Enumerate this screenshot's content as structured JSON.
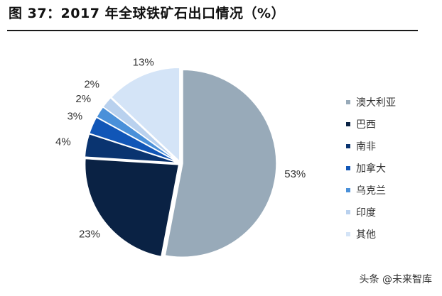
{
  "title": "图 37：2017 年全球铁矿石出口情况（%）",
  "watermark": "头条 @未来智库",
  "chart_data": {
    "type": "pie",
    "title": "图 37：2017 年全球铁矿石出口情况（%）",
    "categories": [
      "澳大利亚",
      "巴西",
      "南非",
      "加拿大",
      "乌克兰",
      "印度",
      "其他"
    ],
    "values": [
      53,
      23,
      4,
      3,
      2,
      2,
      13
    ],
    "value_labels": [
      "53%",
      "23%",
      "4%",
      "3%",
      "2%",
      "2%",
      "13%"
    ],
    "colors": [
      "#98aab9",
      "#0a2244",
      "#0a3470",
      "#1156b7",
      "#4a90d9",
      "#b9d1ee",
      "#d4e4f7"
    ],
    "start": "12 o'clock",
    "direction": "clockwise",
    "legend_position": "right"
  }
}
